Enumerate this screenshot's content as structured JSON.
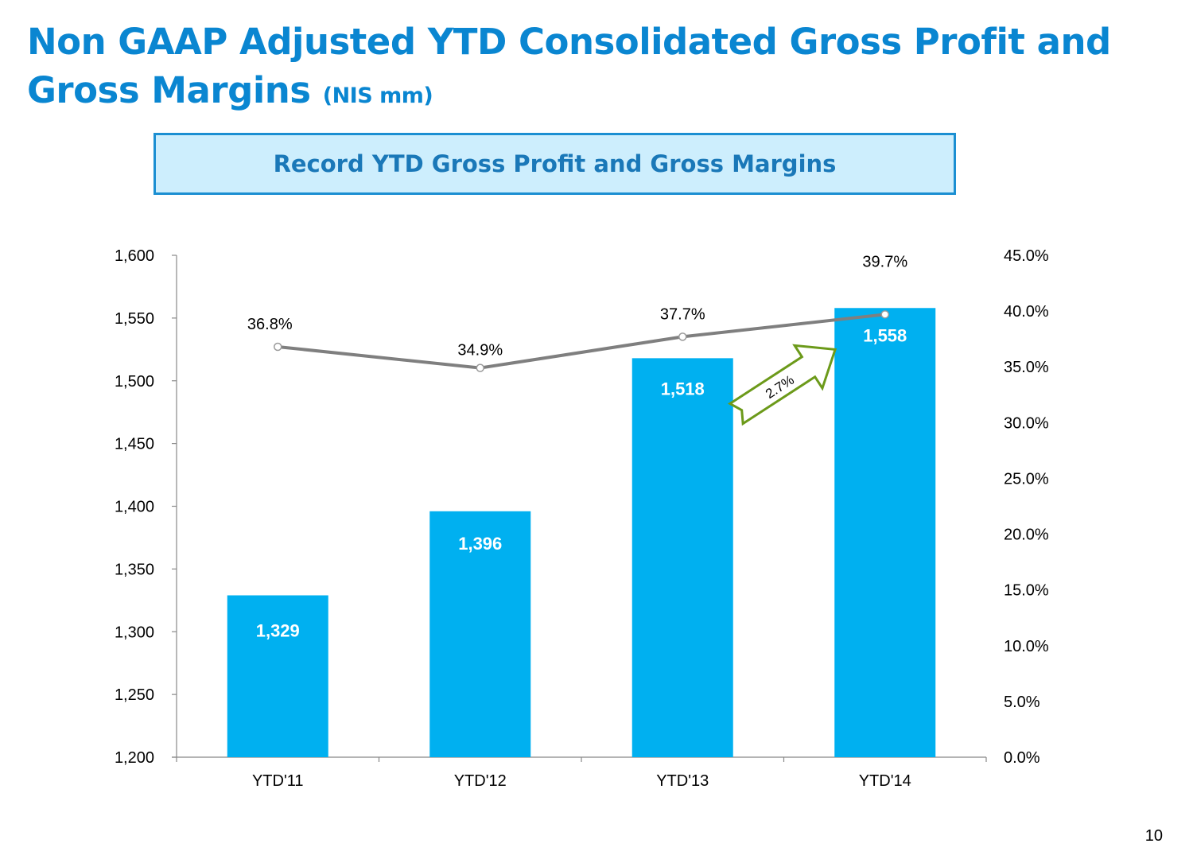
{
  "slide": {
    "title_main": "Non GAAP Adjusted YTD Consolidated Gross Profit and Gross Margins",
    "title_unit": "(NIS mm)",
    "banner": "Record YTD Gross Profit and Gross Margins",
    "page_number": "10"
  },
  "colors": {
    "title": "#0a86d1",
    "bar": "#00b0f0",
    "line": "#7f7f7f",
    "arrow_stroke": "#6c9a1a",
    "banner_fill": "#cdeefd",
    "banner_border": "#1b8fd2"
  },
  "chart_data": {
    "type": "bar",
    "categories": [
      "YTD'11",
      "YTD'12",
      "YTD'13",
      "YTD'14"
    ],
    "series": [
      {
        "type": "bar",
        "axis": "left",
        "values": [
          1329,
          1396,
          1518,
          1558
        ],
        "labels": [
          "1,329",
          "1,396",
          "1,518",
          "1,558"
        ]
      },
      {
        "type": "line",
        "axis": "right",
        "values": [
          36.8,
          34.9,
          37.7,
          39.7
        ],
        "labels": [
          "36.8%",
          "34.9%",
          "37.7%",
          "39.7%"
        ]
      }
    ],
    "left_axis": {
      "ylim": [
        1200,
        1600
      ],
      "ticks": [
        1200,
        1250,
        1300,
        1350,
        1400,
        1450,
        1500,
        1550,
        1600
      ],
      "tick_labels": [
        "1,200",
        "1,250",
        "1,300",
        "1,350",
        "1,400",
        "1,450",
        "1,500",
        "1,550",
        "1,600"
      ]
    },
    "right_axis": {
      "ylim": [
        0,
        45
      ],
      "ticks": [
        0,
        5,
        10,
        15,
        20,
        25,
        30,
        35,
        40,
        45
      ],
      "tick_labels": [
        "0.0%",
        "5.0%",
        "10.0%",
        "15.0%",
        "20.0%",
        "25.0%",
        "30.0%",
        "35.0%",
        "40.0%",
        "45.0%"
      ]
    },
    "annotation": {
      "text": "2.7%",
      "from": "YTD'13",
      "to": "YTD'14"
    },
    "grid": false
  }
}
